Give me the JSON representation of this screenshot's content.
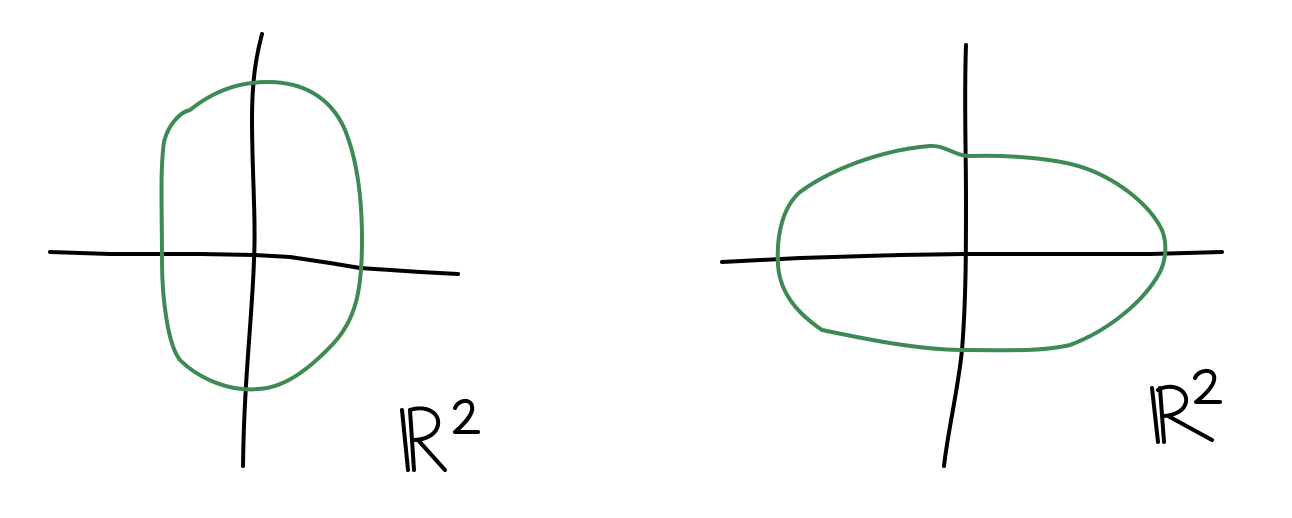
{
  "colors": {
    "background": "#ffffff",
    "axes": "#000000",
    "curve": "#3d8a55",
    "label": "#000000"
  },
  "diagrams": [
    {
      "name": "left-plane",
      "label": "ℝ²",
      "curve_shape": "vertical-oval"
    },
    {
      "name": "right-plane",
      "label": "ℝ²",
      "curve_shape": "horizontal-oval"
    }
  ]
}
